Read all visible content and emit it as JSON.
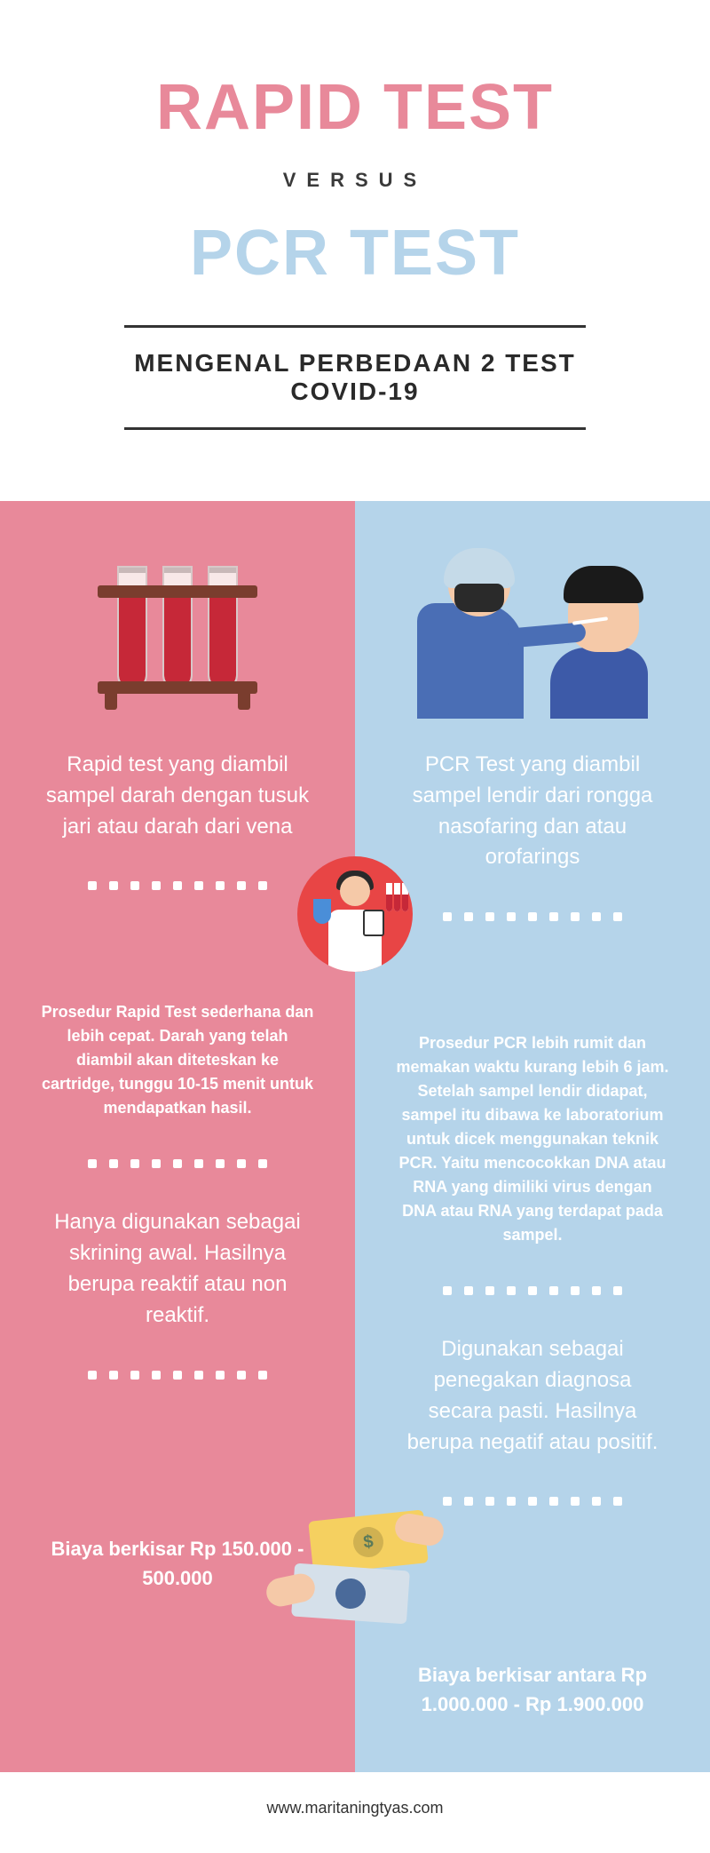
{
  "header": {
    "rapid": "RAPID TEST",
    "versus": "VERSUS",
    "pcr": "PCR TEST",
    "subtitle": "MENGENAL PERBEDAAN 2 TEST COVID-19"
  },
  "colors": {
    "rapid_title": "#e8899a",
    "pcr_title": "#b5d4ea",
    "left_bg": "#e8899a",
    "right_bg": "#b5d4ea"
  },
  "left": {
    "section1": "Rapid test yang diambil sampel darah dengan tusuk jari atau darah dari vena",
    "section2": "Prosedur Rapid Test sederhana dan lebih cepat. Darah yang telah diambil akan diteteskan ke cartridge, tunggu 10-15 menit untuk mendapatkan hasil.",
    "section3": "Hanya digunakan sebagai skrining awal. Hasilnya berupa reaktif atau non reaktif.",
    "price": "Biaya berkisar Rp 150.000 - 500.000"
  },
  "right": {
    "section1": "PCR Test yang diambil sampel lendir dari rongga nasofaring dan atau orofarings",
    "section2": "Prosedur PCR lebih rumit dan memakan waktu kurang lebih 6 jam. Setelah sampel lendir didapat, sampel itu dibawa ke laboratorium untuk dicek menggunakan teknik PCR. Yaitu mencocokkan DNA atau RNA yang dimiliki virus dengan DNA atau RNA yang terdapat pada sampel.",
    "section3": "Digunakan sebagai penegakan diagnosa secara pasti. Hasilnya berupa negatif atau positif.",
    "price": "Biaya berkisar antara Rp 1.000.000 - Rp 1.900.000"
  },
  "footer": "www.maritaningtyas.com",
  "typography": {
    "title_fontsize": 72,
    "subtitle_fontsize": 28,
    "body_fontsize": 24,
    "small_body_fontsize": 18
  }
}
